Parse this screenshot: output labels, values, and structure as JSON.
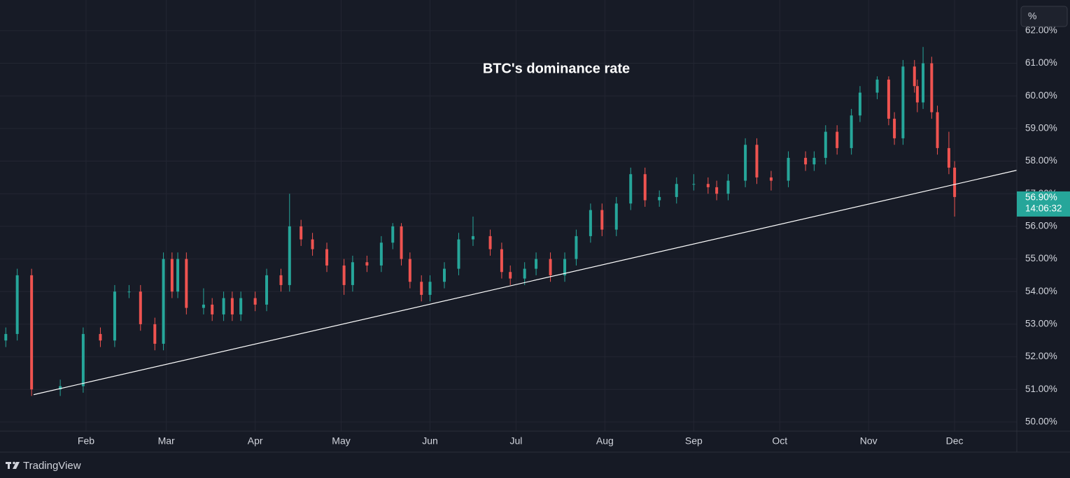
{
  "chart_data": {
    "type": "candlestick",
    "title": "BTC's dominance rate",
    "x": [
      3,
      7,
      12,
      22,
      30,
      36,
      41,
      46,
      50,
      55,
      58,
      61,
      63,
      66,
      72,
      75,
      79,
      82,
      85,
      90,
      94,
      99,
      102,
      106,
      110,
      115,
      121,
      124,
      129,
      134,
      138,
      141,
      144,
      148,
      151,
      156,
      161,
      166,
      172,
      176,
      179,
      184,
      188,
      193,
      198,
      202,
      207,
      211,
      216,
      221,
      226,
      231,
      237,
      243,
      248,
      251,
      255,
      261,
      265,
      270,
      276,
      282,
      285,
      289,
      293,
      298,
      301,
      307,
      311,
      313,
      316,
      320,
      321,
      323,
      326,
      328,
      332,
      334
    ],
    "open": [
      52.5,
      52.7,
      54.5,
      51.0,
      51.1,
      52.7,
      52.5,
      54.0,
      54.0,
      53.0,
      52.4,
      55.0,
      54.0,
      55.0,
      53.5,
      53.6,
      53.3,
      53.8,
      53.3,
      53.8,
      53.6,
      54.5,
      54.2,
      56.0,
      55.6,
      55.3,
      54.8,
      54.2,
      54.9,
      54.8,
      55.5,
      56.0,
      55.0,
      54.3,
      53.9,
      54.3,
      54.7,
      55.6,
      55.7,
      55.3,
      54.6,
      54.4,
      54.7,
      55.0,
      54.5,
      55.0,
      55.7,
      56.5,
      55.9,
      56.7,
      57.6,
      56.8,
      56.9,
      57.3,
      57.3,
      57.2,
      57.0,
      57.4,
      58.5,
      57.5,
      57.4,
      58.1,
      57.9,
      58.1,
      58.9,
      58.4,
      59.4,
      60.1,
      60.5,
      59.3,
      58.7,
      60.9,
      60.3,
      59.8,
      61.0,
      59.5,
      58.4,
      57.8
    ],
    "high": [
      52.9,
      54.7,
      54.7,
      51.3,
      52.9,
      52.9,
      54.2,
      54.2,
      54.2,
      53.2,
      55.2,
      55.2,
      55.2,
      55.2,
      54.1,
      53.8,
      54.0,
      54.0,
      54.0,
      54.0,
      54.7,
      54.7,
      57.0,
      56.2,
      55.8,
      55.5,
      55.0,
      55.1,
      55.1,
      55.7,
      56.1,
      56.1,
      55.2,
      54.5,
      54.5,
      54.9,
      55.8,
      56.3,
      55.9,
      55.5,
      54.8,
      54.9,
      55.2,
      55.2,
      55.2,
      55.9,
      56.7,
      56.7,
      56.9,
      57.8,
      57.8,
      57.1,
      57.5,
      57.6,
      57.5,
      57.4,
      57.6,
      58.7,
      58.7,
      57.7,
      58.3,
      58.3,
      58.3,
      59.1,
      59.1,
      59.6,
      60.3,
      60.6,
      60.6,
      59.5,
      61.1,
      61.1,
      60.5,
      61.5,
      61.2,
      59.7,
      58.9,
      58.0
    ],
    "low": [
      52.3,
      52.5,
      50.8,
      50.8,
      50.9,
      52.3,
      52.3,
      53.8,
      52.8,
      52.2,
      52.2,
      53.8,
      53.8,
      53.3,
      53.3,
      53.1,
      53.1,
      53.1,
      53.1,
      53.4,
      53.4,
      54.0,
      54.0,
      55.4,
      55.1,
      54.6,
      53.9,
      54.0,
      54.6,
      54.6,
      55.3,
      54.8,
      54.1,
      53.7,
      53.7,
      54.1,
      54.5,
      55.4,
      55.1,
      54.4,
      54.2,
      54.2,
      54.5,
      54.3,
      54.3,
      54.8,
      55.5,
      55.7,
      55.7,
      56.5,
      56.6,
      56.6,
      56.7,
      57.1,
      57.0,
      56.8,
      56.8,
      57.2,
      57.3,
      57.1,
      57.2,
      57.7,
      57.7,
      57.9,
      58.2,
      58.2,
      59.2,
      59.9,
      59.1,
      58.5,
      58.5,
      60.1,
      59.5,
      59.6,
      59.3,
      58.2,
      57.6,
      56.3
    ],
    "close": [
      52.7,
      54.5,
      51.0,
      51.1,
      52.7,
      52.5,
      54.0,
      54.0,
      53.0,
      52.4,
      55.0,
      54.0,
      55.0,
      53.5,
      53.6,
      53.3,
      53.8,
      53.3,
      53.8,
      53.6,
      54.5,
      54.2,
      56.0,
      55.6,
      55.3,
      54.8,
      54.2,
      54.9,
      54.8,
      55.5,
      56.0,
      55.0,
      54.3,
      53.9,
      54.3,
      54.7,
      55.6,
      55.7,
      55.3,
      54.6,
      54.4,
      54.7,
      55.0,
      54.5,
      55.0,
      55.7,
      56.5,
      55.9,
      56.7,
      57.6,
      56.8,
      56.9,
      57.3,
      57.3,
      57.2,
      57.0,
      57.4,
      58.5,
      57.5,
      57.4,
      58.1,
      57.9,
      58.1,
      58.9,
      58.4,
      59.4,
      60.1,
      60.5,
      59.3,
      58.7,
      60.9,
      60.3,
      59.8,
      61.0,
      59.5,
      58.4,
      57.8,
      56.9
    ],
    "up_color": "#26a69a",
    "down_color": "#ef5350",
    "xlim": [
      0.98,
      355.7
    ],
    "xticks": [
      {
        "value": 31,
        "label": "Feb"
      },
      {
        "value": 59,
        "label": "Mar"
      },
      {
        "value": 90,
        "label": "Apr"
      },
      {
        "value": 120,
        "label": "May"
      },
      {
        "value": 151,
        "label": "Jun"
      },
      {
        "value": 181,
        "label": "Jul"
      },
      {
        "value": 212,
        "label": "Aug"
      },
      {
        "value": 243,
        "label": "Sep"
      },
      {
        "value": 273,
        "label": "Oct"
      },
      {
        "value": 304,
        "label": "Nov"
      },
      {
        "value": 334,
        "label": "Dec"
      }
    ],
    "ylim": [
      49.72,
      62.94
    ],
    "yticks": [
      {
        "value": 50,
        "label": "50.00%"
      },
      {
        "value": 51,
        "label": "51.00%"
      },
      {
        "value": 52,
        "label": "52.00%"
      },
      {
        "value": 53,
        "label": "53.00%"
      },
      {
        "value": 54,
        "label": "54.00%"
      },
      {
        "value": 55,
        "label": "55.00%"
      },
      {
        "value": 56,
        "label": "56.00%"
      },
      {
        "value": 57,
        "label": "57.00%"
      },
      {
        "value": 58,
        "label": "58.00%"
      },
      {
        "value": 59,
        "label": "59.00%"
      },
      {
        "value": 60,
        "label": "60.00%"
      },
      {
        "value": 61,
        "label": "61.00%"
      },
      {
        "value": 62,
        "label": "62.00%"
      }
    ],
    "grid": true,
    "trendline": {
      "x": [
        12.7,
        355.7
      ],
      "y": [
        50.84,
        57.72
      ],
      "color": "#ffffff"
    },
    "last_price": {
      "value": 56.9,
      "label": "56.90%"
    },
    "countdown": "14:06:32"
  },
  "toolbar": {
    "unit_button": "%"
  },
  "footer": {
    "brand": "TradingView"
  }
}
